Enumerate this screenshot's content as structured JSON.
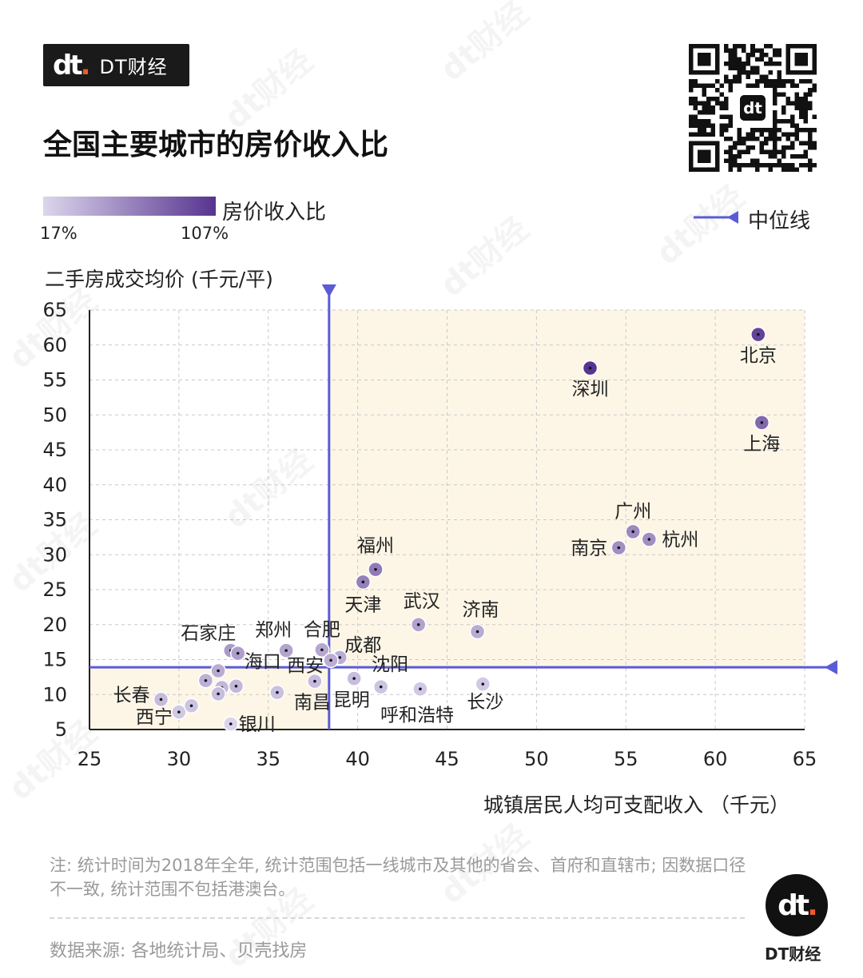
{
  "brand": {
    "logo": "dt",
    "name": "DT财经"
  },
  "title": "全国主要城市的房价收入比",
  "legend": {
    "label": "房价收入比",
    "min": "17%",
    "max": "107%",
    "median_label": "中位线",
    "color_low": "#dcd6ec",
    "color_high": "#57348f"
  },
  "note": "注: 统计时间为2018年全年, 统计范围包括一线城市及其他的省会、首府和直辖市; 因数据口径不一致, 统计范围不包括港澳台。",
  "source": "数据来源: 各地统计局、贝壳找房",
  "footer_brand": {
    "logo": "dt",
    "name": "DT财经"
  },
  "chart_data": {
    "type": "scatter",
    "title": "全国主要城市的房价收入比",
    "xlabel": "城镇居民人均可支配收入 （千元）",
    "ylabel": "二手房成交均价 (千元/平)",
    "xlim": [
      25,
      65
    ],
    "ylim": [
      5,
      65
    ],
    "xticks": [
      25,
      30,
      35,
      40,
      45,
      50,
      55,
      60,
      65
    ],
    "yticks": [
      5,
      10,
      15,
      20,
      25,
      30,
      35,
      40,
      45,
      50,
      55,
      60,
      65
    ],
    "grid": true,
    "median": {
      "x": 38.4,
      "y": 13.9
    },
    "points": [
      {
        "name": "北京",
        "x": 62.4,
        "y": 61.5,
        "ratio": 99
      },
      {
        "name": "深圳",
        "x": 53.0,
        "y": 56.7,
        "ratio": 107
      },
      {
        "name": "上海",
        "x": 62.6,
        "y": 48.9,
        "ratio": 78
      },
      {
        "name": "广州",
        "x": 55.4,
        "y": 33.3,
        "ratio": 60
      },
      {
        "name": "杭州",
        "x": 56.3,
        "y": 32.2,
        "ratio": 57
      },
      {
        "name": "南京",
        "x": 54.6,
        "y": 31.0,
        "ratio": 57
      },
      {
        "name": "福州",
        "x": 41.0,
        "y": 27.9,
        "ratio": 68
      },
      {
        "name": "天津",
        "x": 40.3,
        "y": 26.1,
        "ratio": 65
      },
      {
        "name": "武汉",
        "x": 43.4,
        "y": 20.0,
        "ratio": 46
      },
      {
        "name": "济南",
        "x": 46.7,
        "y": 19.0,
        "ratio": 41
      },
      {
        "name": "石家庄",
        "x": 32.9,
        "y": 16.3,
        "ratio": 50
      },
      {
        "name": "郑州",
        "x": 36.0,
        "y": 16.3,
        "ratio": 45
      },
      {
        "name": "合肥",
        "x": 38.0,
        "y": 16.4,
        "ratio": 43
      },
      {
        "name": "成都",
        "x": 39.0,
        "y": 15.3,
        "ratio": 39
      },
      {
        "name": "西安",
        "x": 38.5,
        "y": 14.9,
        "ratio": 39
      },
      {
        "name": "海口",
        "x": 33.3,
        "y": 15.9,
        "ratio": 48
      },
      {
        "name": "沈阳",
        "x": 39.8,
        "y": 12.3,
        "ratio": 31
      },
      {
        "name": "南昌",
        "x": 37.6,
        "y": 11.9,
        "ratio": 32
      },
      {
        "name": "昆明",
        "x": 41.3,
        "y": 11.1,
        "ratio": 27
      },
      {
        "name": "呼和浩特",
        "x": 43.5,
        "y": 10.8,
        "ratio": 25
      },
      {
        "name": "长沙",
        "x": 47.0,
        "y": 11.5,
        "ratio": 24
      },
      {
        "name": "长春",
        "x": 29.0,
        "y": 9.3,
        "ratio": 32
      },
      {
        "name": "西宁",
        "x": 30.0,
        "y": 7.5,
        "ratio": 25
      },
      {
        "name": "银川",
        "x": 32.9,
        "y": 5.8,
        "ratio": 18
      },
      {
        "name": "",
        "x": 31.5,
        "y": 12.0,
        "ratio": 38
      },
      {
        "name": "",
        "x": 32.2,
        "y": 13.4,
        "ratio": 41
      },
      {
        "name": "",
        "x": 32.4,
        "y": 11.0,
        "ratio": 34
      },
      {
        "name": "",
        "x": 32.2,
        "y": 10.1,
        "ratio": 31
      },
      {
        "name": "",
        "x": 33.2,
        "y": 11.2,
        "ratio": 34
      },
      {
        "name": "",
        "x": 35.5,
        "y": 10.3,
        "ratio": 29
      },
      {
        "name": "",
        "x": 30.7,
        "y": 8.4,
        "ratio": 27
      }
    ]
  }
}
